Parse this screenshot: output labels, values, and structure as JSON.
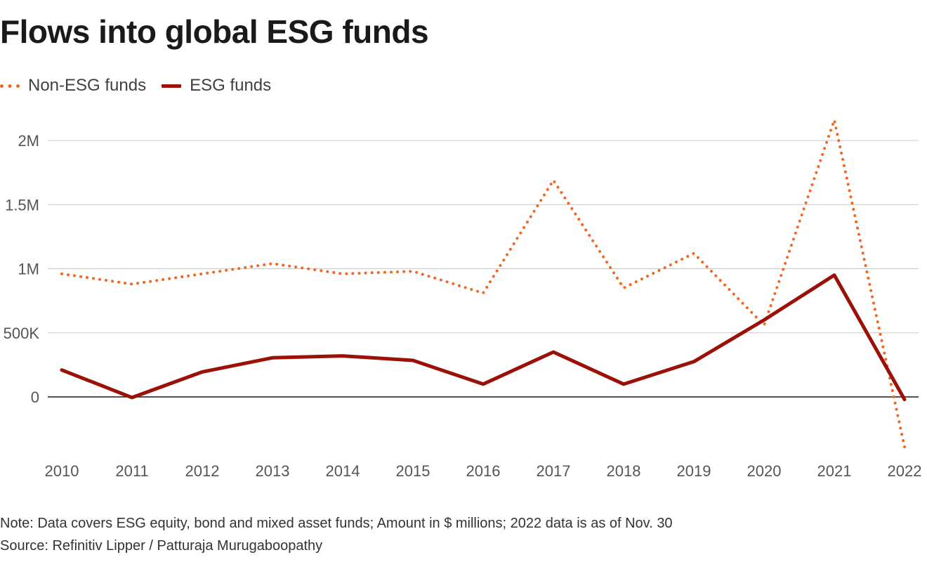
{
  "title": "Flows into global ESG funds",
  "legend": [
    {
      "label": "Non-ESG funds",
      "style": "dotted",
      "color": "#f26722"
    },
    {
      "label": "ESG funds",
      "style": "solid",
      "color": "#9b1007"
    }
  ],
  "footer": {
    "note": "Note: Data covers ESG equity, bond and mixed asset funds; Amount in $ millions; 2022 data is as of Nov. 30",
    "source": "Source: Refinitiv Lipper / Patturaja Murugaboopathy"
  },
  "chart_data": {
    "type": "line",
    "title": "Flows into global ESG funds",
    "xlabel": "",
    "ylabel": "",
    "categories": [
      "2010",
      "2011",
      "2012",
      "2013",
      "2014",
      "2015",
      "2016",
      "2017",
      "2018",
      "2019",
      "2020",
      "2021",
      "2022"
    ],
    "series": [
      {
        "name": "Non-ESG funds",
        "style": "dotted",
        "color": "#f26722",
        "values": [
          960000,
          880000,
          960000,
          1040000,
          960000,
          980000,
          810000,
          1690000,
          850000,
          1120000,
          560000,
          2160000,
          -390000
        ]
      },
      {
        "name": "ESG funds",
        "style": "solid",
        "color": "#9b1007",
        "values": [
          210000,
          -5000,
          195000,
          305000,
          320000,
          285000,
          100000,
          350000,
          100000,
          275000,
          600000,
          950000,
          -20000
        ]
      }
    ],
    "ylim": [
      -500000,
      2000000
    ],
    "yticks": [
      {
        "value": 0,
        "label": "0"
      },
      {
        "value": 500000,
        "label": "500K"
      },
      {
        "value": 1000000,
        "label": "1M"
      },
      {
        "value": 1500000,
        "label": "1.5M"
      },
      {
        "value": 2000000,
        "label": "2M"
      }
    ],
    "grid": true,
    "legend_position": "top-left"
  }
}
